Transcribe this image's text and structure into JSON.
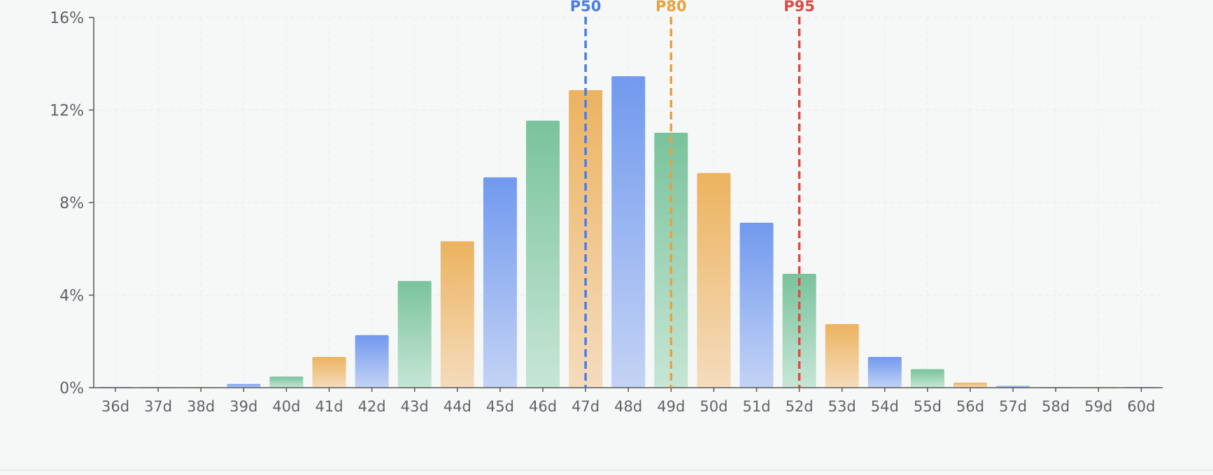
{
  "chart_data": {
    "type": "bar",
    "categories": [
      "36d",
      "37d",
      "38d",
      "39d",
      "40d",
      "41d",
      "42d",
      "43d",
      "44d",
      "45d",
      "46d",
      "47d",
      "48d",
      "49d",
      "50d",
      "51d",
      "52d",
      "53d",
      "54d",
      "55d",
      "56d",
      "57d",
      "58d",
      "59d",
      "60d"
    ],
    "values": [
      0.01,
      0.01,
      0.02,
      0.16,
      0.48,
      1.33,
      2.27,
      4.61,
      6.33,
      9.09,
      11.54,
      12.86,
      13.46,
      11.02,
      9.28,
      7.13,
      4.92,
      2.75,
      1.33,
      0.8,
      0.22,
      0.07,
      0.03,
      0.01,
      0.0
    ],
    "bar_color_cycle": [
      "blue",
      "green",
      "orange"
    ],
    "colors": {
      "blue_top": "#7199ee",
      "blue_bottom": "#c4d3f5",
      "green_top": "#79c39c",
      "green_bottom": "#c7e6d6",
      "orange_top": "#ecb35f",
      "orange_bottom": "#f5dcbd",
      "axis": "#555555",
      "grid": "#e8ebea",
      "tick_text": "#5f6368"
    },
    "ylim": [
      0,
      16
    ],
    "yticks": [
      0,
      4,
      8,
      12,
      16
    ],
    "ytick_labels": [
      "0%",
      "4%",
      "8%",
      "12%",
      "16%"
    ],
    "grid": true,
    "markers": [
      {
        "label": "P50",
        "x": "47d",
        "color": "#4a7ce8"
      },
      {
        "label": "P80",
        "x": "49d",
        "color": "#e9a23b"
      },
      {
        "label": "P95",
        "x": "52d",
        "color": "#dd4a43"
      }
    ],
    "title": "",
    "xlabel": "",
    "ylabel": ""
  }
}
